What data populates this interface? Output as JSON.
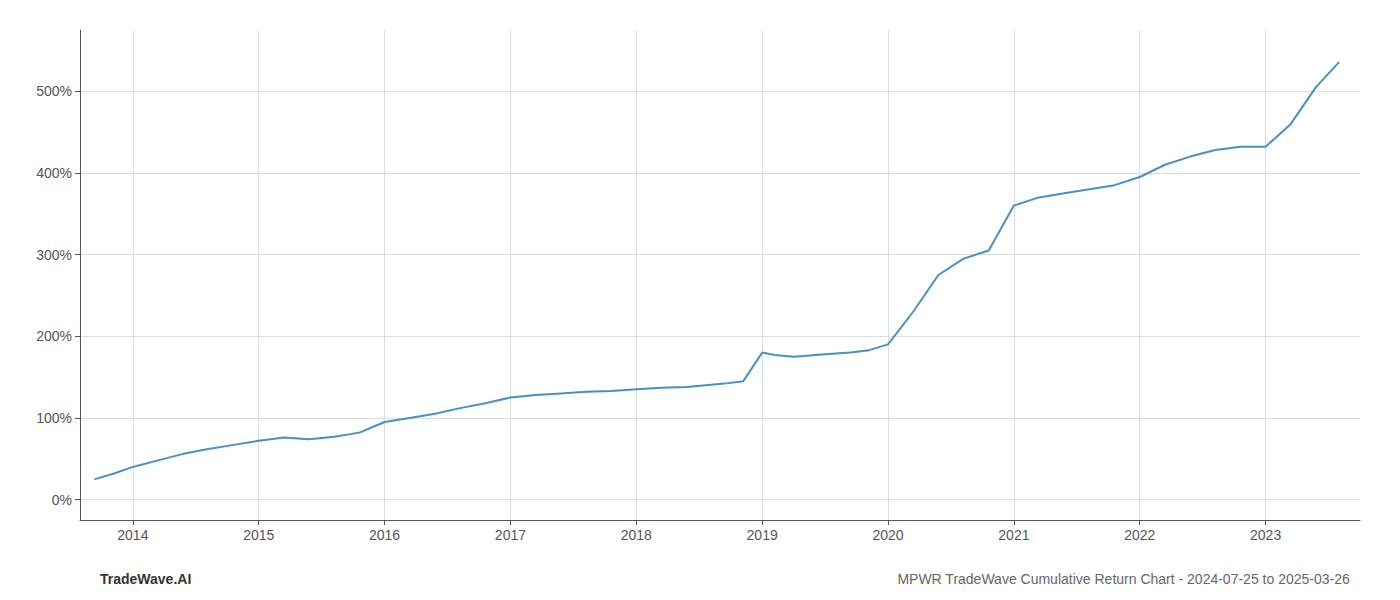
{
  "chart_data": {
    "type": "line",
    "annotations": [
      "TradeWave.AI",
      "MPWR TradeWave Cumulative Return Chart - 2024-07-25 to 2025-03-26"
    ],
    "x": [
      2013.7,
      2013.85,
      2014.0,
      2014.2,
      2014.4,
      2014.6,
      2014.8,
      2015.0,
      2015.2,
      2015.4,
      2015.6,
      2015.8,
      2016.0,
      2016.2,
      2016.4,
      2016.6,
      2016.8,
      2017.0,
      2017.2,
      2017.4,
      2017.6,
      2017.8,
      2018.0,
      2018.2,
      2018.4,
      2018.55,
      2018.7,
      2018.85,
      2019.0,
      2019.1,
      2019.25,
      2019.5,
      2019.7,
      2019.85,
      2020.0,
      2020.2,
      2020.4,
      2020.6,
      2020.8,
      2021.0,
      2021.2,
      2021.4,
      2021.6,
      2021.8,
      2022.0,
      2022.2,
      2022.4,
      2022.6,
      2022.8,
      2023.0,
      2023.2,
      2023.4,
      2023.58
    ],
    "values": [
      25,
      32,
      40,
      48,
      56,
      62,
      67,
      72,
      76,
      74,
      77,
      82,
      95,
      100,
      105,
      112,
      118,
      125,
      128,
      130,
      132,
      133,
      135,
      137,
      138,
      140,
      142,
      145,
      180,
      177,
      175,
      178,
      180,
      183,
      190,
      230,
      275,
      295,
      305,
      360,
      370,
      375,
      380,
      385,
      395,
      410,
      420,
      428,
      432,
      432,
      460,
      505,
      535
    ],
    "color": "#4a90c4",
    "xlim": [
      2013.58,
      2023.75
    ],
    "xticks": [
      2014,
      2015,
      2016,
      2017,
      2018,
      2019,
      2020,
      2021,
      2022,
      2023
    ],
    "ylim": [
      -25,
      575
    ],
    "yticks": [
      {
        "value": 0,
        "label": "0%"
      },
      {
        "value": 100,
        "label": "100%"
      },
      {
        "value": 200,
        "label": "200%"
      },
      {
        "value": 300,
        "label": "300%"
      },
      {
        "value": 400,
        "label": "400%"
      },
      {
        "value": 500,
        "label": "500%"
      }
    ],
    "grid": true
  }
}
